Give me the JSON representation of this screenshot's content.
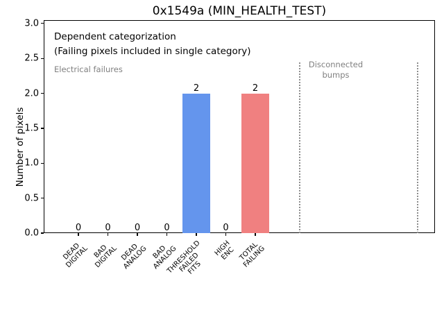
{
  "window": {
    "title": "0x1549a (MIN_HEALTH_TEST)"
  },
  "chart_data": {
    "type": "bar",
    "title": "0x1549a (MIN_HEALTH_TEST)",
    "xlabel": "",
    "ylabel": "Number of pixels",
    "ylim": [
      0.0,
      3.05
    ],
    "yticks": [
      0.0,
      0.5,
      1.0,
      1.5,
      2.0,
      2.5,
      3.0
    ],
    "ytick_labels": [
      "0.0",
      "0.5",
      "1.0",
      "1.5",
      "2.0",
      "2.5",
      "3.0"
    ],
    "categories": [
      "DEAD\nDIGITAL",
      "BAD\nDIGITAL",
      "DEAD\nANALOG",
      "BAD\nANALOG",
      "THRESHOLD\nFAILED\nFITS",
      "HIGH\nENC",
      "TOTAL\nFAILING"
    ],
    "values": [
      0,
      0,
      0,
      0,
      2,
      0,
      2
    ],
    "bar_value_labels": [
      "0",
      "0",
      "0",
      "0",
      "2",
      "0",
      "2"
    ],
    "bar_colors": [
      null,
      null,
      null,
      null,
      "#6495ED",
      null,
      "#F08080"
    ],
    "grid": false,
    "legend": null,
    "separators_x": [
      7.5,
      11.5
    ],
    "annotations": [
      {
        "id": "dependent",
        "text": "Dependent categorization",
        "color": "#000000"
      },
      {
        "id": "failing",
        "text": "(Failing pixels included in single category)",
        "color": "#000000"
      },
      {
        "id": "electrical",
        "text": "Electrical failures",
        "color": "#808080"
      },
      {
        "id": "disconnected",
        "text": "Disconnected\nbumps",
        "color": "#808080"
      }
    ],
    "colors": {
      "bar_blue": "#6495ED",
      "bar_red": "#F08080",
      "annotation_gray": "#808080"
    }
  }
}
